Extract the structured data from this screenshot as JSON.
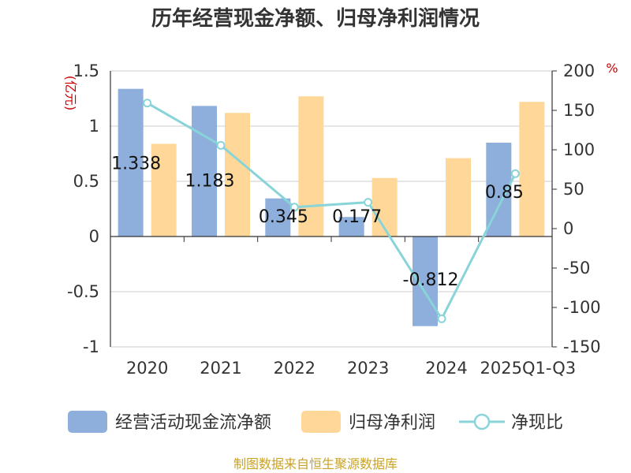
{
  "chart_data": {
    "type": "bar",
    "title": "历年经营现金净额、归母净利润情况",
    "categories": [
      "2020",
      "2021",
      "2022",
      "2023",
      "2024",
      "2025Q1-Q3"
    ],
    "series": [
      {
        "name": "经营活动现金流净额",
        "type": "bar",
        "axis": "left",
        "color": "#8eaedb",
        "values": [
          1.338,
          1.183,
          0.345,
          0.177,
          -0.812,
          0.85
        ],
        "labels": [
          "1.338",
          "1.183",
          "0.345",
          "0.177",
          "-0.812",
          "0.85"
        ]
      },
      {
        "name": "归母净利润",
        "type": "bar",
        "axis": "left",
        "color": "#ffd899",
        "values": [
          0.84,
          1.12,
          1.27,
          0.53,
          0.71,
          1.22
        ]
      },
      {
        "name": "净现比",
        "type": "line",
        "axis": "right",
        "color": "#88d4d8",
        "values": [
          159.3,
          105.6,
          27.2,
          33.4,
          -114.4,
          69.7
        ]
      }
    ],
    "y_left": {
      "unit": "(亿元)",
      "ylim": [
        -1,
        1.5
      ],
      "ticks": [
        -1,
        -0.5,
        0,
        0.5,
        1,
        1.5
      ],
      "tick_labels": [
        "-1",
        "-0.5",
        "0",
        "0.5",
        "1",
        "1.5"
      ]
    },
    "y_right": {
      "unit": "%",
      "ylim": [
        -150,
        200
      ],
      "ticks": [
        -150,
        -100,
        -50,
        0,
        50,
        100,
        150,
        200
      ],
      "tick_labels": [
        "-150",
        "-100",
        "-50",
        "0",
        "50",
        "100",
        "150",
        "200"
      ]
    },
    "grid": true,
    "legend": "bottom",
    "source": "制图数据来自恒生聚源数据库"
  }
}
